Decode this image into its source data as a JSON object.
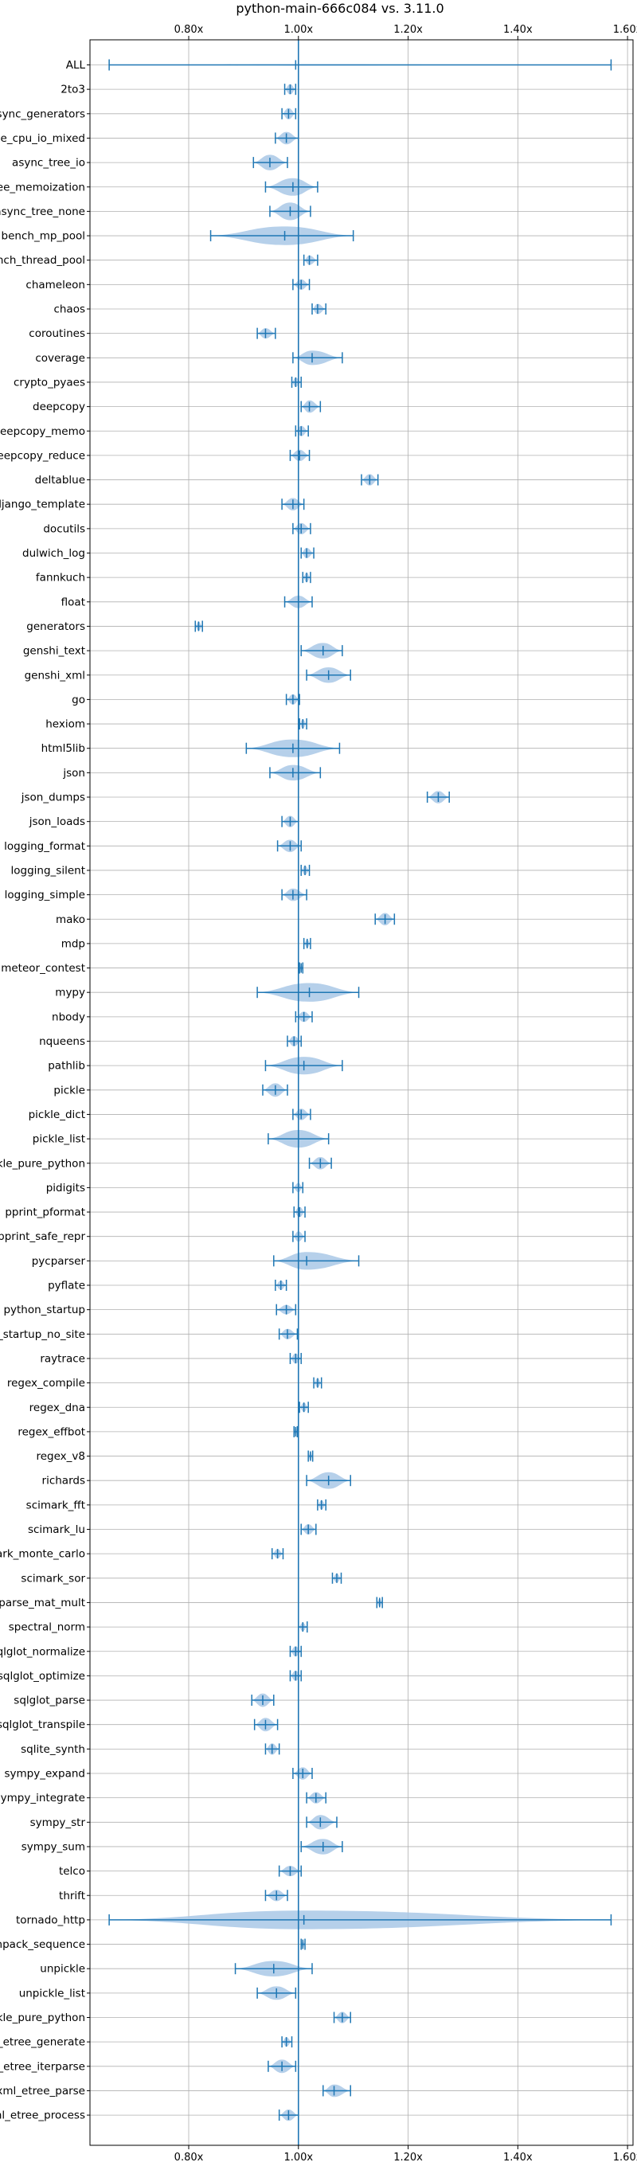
{
  "chart_data": {
    "type": "violin",
    "orientation": "horizontal",
    "title": "python-main-666c084 vs. 3.11.0",
    "xlabel": "",
    "ylabel": "",
    "xlim": [
      0.62,
      1.61
    ],
    "x_ticks": [
      0.8,
      1.0,
      1.2,
      1.4,
      1.6
    ],
    "x_tick_labels": [
      "0.80x",
      "1.00x",
      "1.20x",
      "1.40x",
      "1.60x"
    ],
    "x_tick_positions": [
      "top",
      "bottom"
    ],
    "reference_line": 1.0,
    "grid": true,
    "colors": {
      "violin": "#a9c8e6",
      "line": "#1f77b4",
      "grid": "#b0b0b0"
    },
    "benchmarks": [
      {
        "name": "ALL",
        "min": 0.655,
        "mean": 0.995,
        "max": 1.57,
        "width": 0.055
      },
      {
        "name": "2to3",
        "min": 0.975,
        "mean": 0.985,
        "max": 0.995,
        "width": 0.5
      },
      {
        "name": "async_generators",
        "min": 0.97,
        "mean": 0.982,
        "max": 0.995,
        "width": 0.55
      },
      {
        "name": "async_tree_cpu_io_mixed",
        "min": 0.958,
        "mean": 0.978,
        "max": 1.0,
        "width": 0.6
      },
      {
        "name": "async_tree_io",
        "min": 0.918,
        "mean": 0.948,
        "max": 0.98,
        "width": 0.75
      },
      {
        "name": "async_tree_memoization",
        "min": 0.94,
        "mean": 0.99,
        "max": 1.035,
        "width": 0.85
      },
      {
        "name": "async_tree_none",
        "min": 0.948,
        "mean": 0.985,
        "max": 1.022,
        "width": 0.85
      },
      {
        "name": "bench_mp_pool",
        "min": 0.84,
        "mean": 0.975,
        "max": 1.1,
        "width": 0.9
      },
      {
        "name": "bench_thread_pool",
        "min": 1.01,
        "mean": 1.02,
        "max": 1.035,
        "width": 0.45
      },
      {
        "name": "chameleon",
        "min": 0.99,
        "mean": 1.005,
        "max": 1.02,
        "width": 0.5
      },
      {
        "name": "chaos",
        "min": 1.025,
        "mean": 1.035,
        "max": 1.05,
        "width": 0.5
      },
      {
        "name": "coroutines",
        "min": 0.925,
        "mean": 0.94,
        "max": 0.958,
        "width": 0.5
      },
      {
        "name": "coverage",
        "min": 0.99,
        "mean": 1.025,
        "max": 1.08,
        "width": 0.7
      },
      {
        "name": "crypto_pyaes",
        "min": 0.988,
        "mean": 0.995,
        "max": 1.005,
        "width": 0.45
      },
      {
        "name": "deepcopy",
        "min": 1.005,
        "mean": 1.02,
        "max": 1.04,
        "width": 0.6
      },
      {
        "name": "deepcopy_memo",
        "min": 0.995,
        "mean": 1.005,
        "max": 1.018,
        "width": 0.5
      },
      {
        "name": "deepcopy_reduce",
        "min": 0.985,
        "mean": 1.002,
        "max": 1.02,
        "width": 0.55
      },
      {
        "name": "deltablue",
        "min": 1.115,
        "mean": 1.13,
        "max": 1.145,
        "width": 0.55
      },
      {
        "name": "django_template",
        "min": 0.97,
        "mean": 0.99,
        "max": 1.01,
        "width": 0.6
      },
      {
        "name": "docutils",
        "min": 0.99,
        "mean": 1.005,
        "max": 1.022,
        "width": 0.55
      },
      {
        "name": "dulwich_log",
        "min": 1.005,
        "mean": 1.015,
        "max": 1.028,
        "width": 0.5
      },
      {
        "name": "fannkuch",
        "min": 1.008,
        "mean": 1.015,
        "max": 1.022,
        "width": 0.45
      },
      {
        "name": "float",
        "min": 0.975,
        "mean": 1.0,
        "max": 1.025,
        "width": 0.6
      },
      {
        "name": "generators",
        "min": 0.812,
        "mean": 0.818,
        "max": 0.825,
        "width": 0.45
      },
      {
        "name": "genshi_text",
        "min": 1.005,
        "mean": 1.045,
        "max": 1.08,
        "width": 0.75
      },
      {
        "name": "genshi_xml",
        "min": 1.015,
        "mean": 1.055,
        "max": 1.095,
        "width": 0.75
      },
      {
        "name": "go",
        "min": 0.978,
        "mean": 0.99,
        "max": 1.002,
        "width": 0.5
      },
      {
        "name": "hexiom",
        "min": 1.002,
        "mean": 1.008,
        "max": 1.015,
        "width": 0.45
      },
      {
        "name": "html5lib",
        "min": 0.905,
        "mean": 0.99,
        "max": 1.075,
        "width": 0.85
      },
      {
        "name": "json",
        "min": 0.948,
        "mean": 0.99,
        "max": 1.04,
        "width": 0.75
      },
      {
        "name": "json_dumps",
        "min": 1.235,
        "mean": 1.255,
        "max": 1.275,
        "width": 0.6
      },
      {
        "name": "json_loads",
        "min": 0.97,
        "mean": 0.985,
        "max": 1.0,
        "width": 0.55
      },
      {
        "name": "logging_format",
        "min": 0.962,
        "mean": 0.985,
        "max": 1.005,
        "width": 0.6
      },
      {
        "name": "logging_silent",
        "min": 1.005,
        "mean": 1.012,
        "max": 1.02,
        "width": 0.45
      },
      {
        "name": "logging_simple",
        "min": 0.97,
        "mean": 0.99,
        "max": 1.015,
        "width": 0.6
      },
      {
        "name": "mako",
        "min": 1.14,
        "mean": 1.158,
        "max": 1.175,
        "width": 0.6
      },
      {
        "name": "mdp",
        "min": 1.01,
        "mean": 1.016,
        "max": 1.022,
        "width": 0.4
      },
      {
        "name": "meteor_contest",
        "min": 1.002,
        "mean": 1.005,
        "max": 1.008,
        "width": 0.4
      },
      {
        "name": "mypy",
        "min": 0.925,
        "mean": 1.02,
        "max": 1.11,
        "width": 0.9
      },
      {
        "name": "nbody",
        "min": 0.995,
        "mean": 1.01,
        "max": 1.025,
        "width": 0.5
      },
      {
        "name": "nqueens",
        "min": 0.98,
        "mean": 0.992,
        "max": 1.005,
        "width": 0.5
      },
      {
        "name": "pathlib",
        "min": 0.94,
        "mean": 1.01,
        "max": 1.08,
        "width": 0.85
      },
      {
        "name": "pickle",
        "min": 0.935,
        "mean": 0.958,
        "max": 0.98,
        "width": 0.65
      },
      {
        "name": "pickle_dict",
        "min": 0.99,
        "mean": 1.005,
        "max": 1.022,
        "width": 0.55
      },
      {
        "name": "pickle_list",
        "min": 0.945,
        "mean": 1.0,
        "max": 1.055,
        "width": 0.85
      },
      {
        "name": "pickle_pure_python",
        "min": 1.02,
        "mean": 1.04,
        "max": 1.06,
        "width": 0.6
      },
      {
        "name": "pidigits",
        "min": 0.99,
        "mean": 1.0,
        "max": 1.008,
        "width": 0.45
      },
      {
        "name": "pprint_pformat",
        "min": 0.992,
        "mean": 1.002,
        "max": 1.012,
        "width": 0.5
      },
      {
        "name": "pprint_safe_repr",
        "min": 0.99,
        "mean": 1.0,
        "max": 1.012,
        "width": 0.5
      },
      {
        "name": "pycparser",
        "min": 0.955,
        "mean": 1.015,
        "max": 1.11,
        "width": 0.85
      },
      {
        "name": "pyflate",
        "min": 0.958,
        "mean": 0.968,
        "max": 0.978,
        "width": 0.45
      },
      {
        "name": "python_startup",
        "min": 0.96,
        "mean": 0.978,
        "max": 0.995,
        "width": 0.45
      },
      {
        "name": "python_startup_no_site",
        "min": 0.965,
        "mean": 0.98,
        "max": 0.998,
        "width": 0.5
      },
      {
        "name": "raytrace",
        "min": 0.985,
        "mean": 0.995,
        "max": 1.005,
        "width": 0.5
      },
      {
        "name": "regex_compile",
        "min": 1.028,
        "mean": 1.035,
        "max": 1.042,
        "width": 0.45
      },
      {
        "name": "regex_dna",
        "min": 1.002,
        "mean": 1.01,
        "max": 1.018,
        "width": 0.45
      },
      {
        "name": "regex_effbot",
        "min": 0.992,
        "mean": 0.995,
        "max": 0.998,
        "width": 0.4
      },
      {
        "name": "regex_v8",
        "min": 1.018,
        "mean": 1.022,
        "max": 1.026,
        "width": 0.4
      },
      {
        "name": "richards",
        "min": 1.015,
        "mean": 1.055,
        "max": 1.095,
        "width": 0.8
      },
      {
        "name": "scimark_fft",
        "min": 1.035,
        "mean": 1.042,
        "max": 1.05,
        "width": 0.45
      },
      {
        "name": "scimark_lu",
        "min": 1.005,
        "mean": 1.018,
        "max": 1.032,
        "width": 0.5
      },
      {
        "name": "scimark_monte_carlo",
        "min": 0.952,
        "mean": 0.962,
        "max": 0.972,
        "width": 0.45
      },
      {
        "name": "scimark_sor",
        "min": 1.062,
        "mean": 1.07,
        "max": 1.078,
        "width": 0.45
      },
      {
        "name": "scimark_sparse_mat_mult",
        "min": 1.143,
        "mean": 1.148,
        "max": 1.153,
        "width": 0.4
      },
      {
        "name": "spectral_norm",
        "min": 1.0,
        "mean": 1.008,
        "max": 1.016,
        "width": 0.4
      },
      {
        "name": "sqlglot_normalize",
        "min": 0.985,
        "mean": 0.995,
        "max": 1.005,
        "width": 0.5
      },
      {
        "name": "sqlglot_optimize",
        "min": 0.985,
        "mean": 0.995,
        "max": 1.005,
        "width": 0.5
      },
      {
        "name": "sqlglot_parse",
        "min": 0.915,
        "mean": 0.935,
        "max": 0.955,
        "width": 0.65
      },
      {
        "name": "sqlglot_transpile",
        "min": 0.92,
        "mean": 0.94,
        "max": 0.962,
        "width": 0.65
      },
      {
        "name": "sqlite_synth",
        "min": 0.94,
        "mean": 0.952,
        "max": 0.965,
        "width": 0.55
      },
      {
        "name": "sympy_expand",
        "min": 0.99,
        "mean": 1.008,
        "max": 1.025,
        "width": 0.6
      },
      {
        "name": "sympy_integrate",
        "min": 1.015,
        "mean": 1.032,
        "max": 1.05,
        "width": 0.55
      },
      {
        "name": "sympy_str",
        "min": 1.015,
        "mean": 1.04,
        "max": 1.07,
        "width": 0.7
      },
      {
        "name": "sympy_sum",
        "min": 1.005,
        "mean": 1.045,
        "max": 1.08,
        "width": 0.75
      },
      {
        "name": "telco",
        "min": 0.965,
        "mean": 0.985,
        "max": 1.005,
        "width": 0.5
      },
      {
        "name": "thrift",
        "min": 0.94,
        "mean": 0.96,
        "max": 0.98,
        "width": 0.55
      },
      {
        "name": "tornado_http",
        "min": 0.655,
        "mean": 1.01,
        "max": 1.57,
        "width": 0.9
      },
      {
        "name": "unpack_sequence",
        "min": 1.005,
        "mean": 1.008,
        "max": 1.012,
        "width": 0.4
      },
      {
        "name": "unpickle",
        "min": 0.885,
        "mean": 0.955,
        "max": 1.025,
        "width": 0.75
      },
      {
        "name": "unpickle_list",
        "min": 0.925,
        "mean": 0.96,
        "max": 0.995,
        "width": 0.65
      },
      {
        "name": "unpickle_pure_python",
        "min": 1.065,
        "mean": 1.08,
        "max": 1.095,
        "width": 0.55
      },
      {
        "name": "xml_etree_generate",
        "min": 0.97,
        "mean": 0.978,
        "max": 0.988,
        "width": 0.45
      },
      {
        "name": "xml_etree_iterparse",
        "min": 0.945,
        "mean": 0.97,
        "max": 0.995,
        "width": 0.65
      },
      {
        "name": "xml_etree_parse",
        "min": 1.045,
        "mean": 1.065,
        "max": 1.095,
        "width": 0.6
      },
      {
        "name": "xml_etree_process",
        "min": 0.965,
        "mean": 0.982,
        "max": 1.0,
        "width": 0.55
      }
    ]
  }
}
